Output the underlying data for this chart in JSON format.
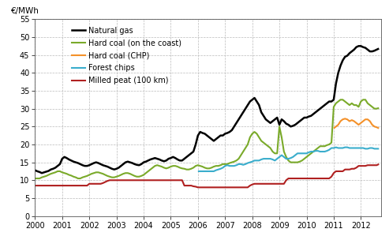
{
  "title": "",
  "ylabel": "€/MWh",
  "ylim": [
    0,
    55
  ],
  "yticks": [
    0,
    5,
    10,
    15,
    20,
    25,
    30,
    35,
    40,
    45,
    50,
    55
  ],
  "xlim": [
    2000,
    2012.75
  ],
  "xticks": [
    2000,
    2001,
    2002,
    2003,
    2004,
    2005,
    2006,
    2007,
    2008,
    2009,
    2010,
    2011,
    2012
  ],
  "background_color": "#ffffff",
  "grid_color": "#bbbbbb",
  "series": {
    "Natural gas": {
      "color": "#000000",
      "linewidth": 1.8,
      "x": [
        2000.0,
        2000.083,
        2000.167,
        2000.25,
        2000.333,
        2000.417,
        2000.5,
        2000.583,
        2000.667,
        2000.75,
        2000.833,
        2000.917,
        2001.0,
        2001.083,
        2001.167,
        2001.25,
        2001.333,
        2001.417,
        2001.5,
        2001.583,
        2001.667,
        2001.75,
        2001.833,
        2001.917,
        2002.0,
        2002.083,
        2002.167,
        2002.25,
        2002.333,
        2002.417,
        2002.5,
        2002.583,
        2002.667,
        2002.75,
        2002.833,
        2002.917,
        2003.0,
        2003.083,
        2003.167,
        2003.25,
        2003.333,
        2003.417,
        2003.5,
        2003.583,
        2003.667,
        2003.75,
        2003.833,
        2003.917,
        2004.0,
        2004.083,
        2004.167,
        2004.25,
        2004.333,
        2004.417,
        2004.5,
        2004.583,
        2004.667,
        2004.75,
        2004.833,
        2004.917,
        2005.0,
        2005.083,
        2005.167,
        2005.25,
        2005.333,
        2005.417,
        2005.5,
        2005.583,
        2005.667,
        2005.75,
        2005.833,
        2005.917,
        2006.0,
        2006.083,
        2006.167,
        2006.25,
        2006.333,
        2006.417,
        2006.5,
        2006.583,
        2006.667,
        2006.75,
        2006.833,
        2006.917,
        2007.0,
        2007.083,
        2007.167,
        2007.25,
        2007.333,
        2007.417,
        2007.5,
        2007.583,
        2007.667,
        2007.75,
        2007.833,
        2007.917,
        2008.0,
        2008.083,
        2008.167,
        2008.25,
        2008.333,
        2008.417,
        2008.5,
        2008.583,
        2008.667,
        2008.75,
        2008.833,
        2008.917,
        2009.0,
        2009.083,
        2009.167,
        2009.25,
        2009.333,
        2009.417,
        2009.5,
        2009.583,
        2009.667,
        2009.75,
        2009.833,
        2009.917,
        2010.0,
        2010.083,
        2010.167,
        2010.25,
        2010.333,
        2010.417,
        2010.5,
        2010.583,
        2010.667,
        2010.75,
        2010.833,
        2010.917,
        2011.0,
        2011.083,
        2011.167,
        2011.25,
        2011.333,
        2011.417,
        2011.5,
        2011.583,
        2011.667,
        2011.75,
        2011.833,
        2011.917,
        2012.0,
        2012.083,
        2012.167,
        2012.25,
        2012.333,
        2012.417,
        2012.5,
        2012.583,
        2012.667
      ],
      "y": [
        12.8,
        12.5,
        12.3,
        12.0,
        12.2,
        12.4,
        12.6,
        13.0,
        13.2,
        13.5,
        14.0,
        14.5,
        16.0,
        16.5,
        16.2,
        15.8,
        15.5,
        15.2,
        15.0,
        14.8,
        14.5,
        14.2,
        14.0,
        14.0,
        14.2,
        14.5,
        14.8,
        15.0,
        14.8,
        14.5,
        14.2,
        14.0,
        13.8,
        13.5,
        13.2,
        13.0,
        13.2,
        13.5,
        14.0,
        14.5,
        15.0,
        15.2,
        15.0,
        14.8,
        14.5,
        14.3,
        14.2,
        14.5,
        15.0,
        15.2,
        15.5,
        15.8,
        16.0,
        16.2,
        16.0,
        15.8,
        15.5,
        15.3,
        15.5,
        16.0,
        16.2,
        16.5,
        16.2,
        15.8,
        15.5,
        15.5,
        16.0,
        16.5,
        17.0,
        17.5,
        18.0,
        20.0,
        22.5,
        23.5,
        23.2,
        23.0,
        22.5,
        22.0,
        21.5,
        21.0,
        21.5,
        22.0,
        22.5,
        22.5,
        23.0,
        23.2,
        23.5,
        24.0,
        25.0,
        26.0,
        27.0,
        28.0,
        29.0,
        30.0,
        31.0,
        32.0,
        32.5,
        33.0,
        32.0,
        31.0,
        29.0,
        28.0,
        27.0,
        26.5,
        26.0,
        26.5,
        27.0,
        27.5,
        25.5,
        27.0,
        26.5,
        25.8,
        25.5,
        25.0,
        25.2,
        25.5,
        26.0,
        26.5,
        27.0,
        27.5,
        27.5,
        27.8,
        28.0,
        28.5,
        29.0,
        29.5,
        30.0,
        30.5,
        31.0,
        31.5,
        32.0,
        32.0,
        32.5,
        37.0,
        40.0,
        42.0,
        43.5,
        44.5,
        44.8,
        45.5,
        46.0,
        46.5,
        47.2,
        47.5,
        47.5,
        47.2,
        47.0,
        46.5,
        46.0,
        46.0,
        46.2,
        46.5,
        46.8
      ]
    },
    "Hard coal (on the coast)": {
      "color": "#7aaa2a",
      "linewidth": 1.5,
      "x": [
        2000.0,
        2000.083,
        2000.167,
        2000.25,
        2000.333,
        2000.417,
        2000.5,
        2000.583,
        2000.667,
        2000.75,
        2000.833,
        2000.917,
        2001.0,
        2001.083,
        2001.167,
        2001.25,
        2001.333,
        2001.417,
        2001.5,
        2001.583,
        2001.667,
        2001.75,
        2001.833,
        2001.917,
        2002.0,
        2002.083,
        2002.167,
        2002.25,
        2002.333,
        2002.417,
        2002.5,
        2002.583,
        2002.667,
        2002.75,
        2002.833,
        2002.917,
        2003.0,
        2003.083,
        2003.167,
        2003.25,
        2003.333,
        2003.417,
        2003.5,
        2003.583,
        2003.667,
        2003.75,
        2003.833,
        2003.917,
        2004.0,
        2004.083,
        2004.167,
        2004.25,
        2004.333,
        2004.417,
        2004.5,
        2004.583,
        2004.667,
        2004.75,
        2004.833,
        2004.917,
        2005.0,
        2005.083,
        2005.167,
        2005.25,
        2005.333,
        2005.417,
        2005.5,
        2005.583,
        2005.667,
        2005.75,
        2005.833,
        2005.917,
        2006.0,
        2006.083,
        2006.167,
        2006.25,
        2006.333,
        2006.417,
        2006.5,
        2006.583,
        2006.667,
        2006.75,
        2006.833,
        2006.917,
        2007.0,
        2007.083,
        2007.167,
        2007.25,
        2007.333,
        2007.417,
        2007.5,
        2007.583,
        2007.667,
        2007.75,
        2007.833,
        2007.917,
        2008.0,
        2008.083,
        2008.167,
        2008.25,
        2008.333,
        2008.417,
        2008.5,
        2008.583,
        2008.667,
        2008.75,
        2008.833,
        2008.917,
        2009.0,
        2009.083,
        2009.167,
        2009.25,
        2009.333,
        2009.417,
        2009.5,
        2009.583,
        2009.667,
        2009.75,
        2009.833,
        2009.917,
        2010.0,
        2010.083,
        2010.167,
        2010.25,
        2010.333,
        2010.417,
        2010.5,
        2010.583,
        2010.667,
        2010.75,
        2010.833,
        2010.917,
        2011.0,
        2011.083,
        2011.167,
        2011.25,
        2011.333,
        2011.417,
        2011.5,
        2011.583,
        2011.667,
        2011.75,
        2011.833,
        2011.917,
        2012.0,
        2012.083,
        2012.167,
        2012.25,
        2012.333,
        2012.417,
        2012.5,
        2012.583,
        2012.667
      ],
      "y": [
        10.5,
        10.5,
        10.5,
        10.8,
        11.0,
        11.2,
        11.5,
        11.8,
        12.0,
        12.2,
        12.5,
        12.5,
        12.2,
        12.0,
        11.8,
        11.5,
        11.3,
        11.0,
        10.8,
        10.5,
        10.5,
        10.8,
        11.0,
        11.2,
        11.5,
        11.8,
        12.0,
        12.2,
        12.2,
        12.0,
        11.8,
        11.5,
        11.2,
        11.0,
        10.8,
        10.8,
        11.0,
        11.2,
        11.5,
        11.8,
        12.0,
        12.0,
        11.8,
        11.5,
        11.2,
        11.0,
        11.0,
        11.2,
        11.5,
        12.0,
        12.5,
        13.0,
        13.5,
        14.0,
        14.2,
        14.0,
        13.8,
        13.5,
        13.3,
        13.5,
        13.8,
        14.0,
        14.0,
        13.8,
        13.5,
        13.3,
        13.2,
        13.0,
        13.0,
        13.2,
        13.5,
        14.0,
        14.2,
        14.0,
        13.8,
        13.5,
        13.3,
        13.3,
        13.5,
        13.8,
        14.0,
        14.0,
        14.2,
        14.5,
        14.5,
        14.5,
        14.8,
        15.0,
        15.2,
        15.5,
        16.0,
        17.0,
        18.0,
        19.0,
        20.0,
        22.0,
        23.0,
        23.5,
        23.0,
        22.0,
        21.0,
        20.5,
        20.0,
        19.5,
        19.0,
        18.0,
        17.5,
        17.5,
        25.0,
        22.0,
        18.0,
        16.5,
        15.5,
        15.0,
        15.0,
        15.0,
        15.0,
        15.2,
        15.5,
        16.0,
        16.5,
        17.0,
        17.5,
        18.0,
        18.5,
        19.0,
        19.5,
        19.5,
        19.5,
        19.8,
        20.0,
        20.5,
        30.5,
        31.5,
        32.0,
        32.5,
        32.5,
        32.0,
        31.5,
        31.0,
        31.5,
        31.0,
        31.0,
        30.5,
        32.0,
        32.5,
        32.5,
        31.5,
        31.0,
        30.5,
        30.0,
        30.0,
        30.2
      ]
    },
    "Hard coal (CHP)": {
      "color": "#f4912a",
      "linewidth": 1.5,
      "x": [
        2011.0,
        2011.083,
        2011.167,
        2011.25,
        2011.333,
        2011.417,
        2011.5,
        2011.583,
        2011.667,
        2011.75,
        2011.833,
        2011.917,
        2012.0,
        2012.083,
        2012.167,
        2012.25,
        2012.333,
        2012.417,
        2012.5,
        2012.583,
        2012.667
      ],
      "y": [
        24.5,
        25.0,
        25.5,
        26.5,
        27.0,
        27.2,
        27.0,
        26.5,
        26.8,
        26.5,
        26.0,
        25.5,
        26.0,
        26.5,
        27.0,
        27.0,
        26.5,
        25.5,
        25.0,
        24.8,
        24.5
      ]
    },
    "Forest chips": {
      "color": "#3aadcc",
      "linewidth": 1.5,
      "x": [
        2006.0,
        2006.083,
        2006.167,
        2006.25,
        2006.333,
        2006.417,
        2006.5,
        2006.583,
        2006.667,
        2006.75,
        2006.833,
        2006.917,
        2007.0,
        2007.083,
        2007.167,
        2007.25,
        2007.333,
        2007.417,
        2007.5,
        2007.583,
        2007.667,
        2007.75,
        2007.833,
        2007.917,
        2008.0,
        2008.083,
        2008.167,
        2008.25,
        2008.333,
        2008.417,
        2008.5,
        2008.583,
        2008.667,
        2008.75,
        2008.833,
        2008.917,
        2009.0,
        2009.083,
        2009.167,
        2009.25,
        2009.333,
        2009.417,
        2009.5,
        2009.583,
        2009.667,
        2009.75,
        2009.833,
        2009.917,
        2010.0,
        2010.083,
        2010.167,
        2010.25,
        2010.333,
        2010.417,
        2010.5,
        2010.583,
        2010.667,
        2010.75,
        2010.833,
        2010.917,
        2011.0,
        2011.083,
        2011.167,
        2011.25,
        2011.333,
        2011.417,
        2011.5,
        2011.583,
        2011.667,
        2011.75,
        2011.833,
        2011.917,
        2012.0,
        2012.083,
        2012.167,
        2012.25,
        2012.333,
        2012.417,
        2012.5,
        2012.583,
        2012.667
      ],
      "y": [
        12.5,
        12.5,
        12.5,
        12.5,
        12.5,
        12.5,
        12.5,
        12.5,
        12.8,
        13.0,
        13.2,
        13.5,
        14.0,
        14.2,
        14.0,
        14.0,
        14.0,
        14.2,
        14.5,
        14.5,
        14.3,
        14.5,
        14.8,
        15.0,
        15.2,
        15.5,
        15.5,
        15.5,
        15.8,
        16.0,
        16.0,
        16.0,
        16.0,
        15.8,
        15.5,
        16.0,
        16.5,
        17.0,
        16.5,
        16.0,
        16.0,
        16.2,
        16.5,
        17.0,
        17.5,
        17.5,
        17.5,
        17.5,
        17.5,
        17.8,
        18.0,
        18.0,
        18.2,
        18.2,
        18.0,
        18.0,
        18.0,
        18.2,
        18.5,
        19.0,
        19.0,
        19.2,
        19.0,
        19.0,
        19.0,
        19.2,
        19.2,
        19.0,
        19.0,
        19.0,
        19.0,
        19.0,
        19.0,
        19.0,
        18.8,
        18.8,
        19.0,
        19.0,
        18.8,
        18.8,
        18.8
      ]
    },
    "Milled peat (100 km)": {
      "color": "#b02020",
      "linewidth": 1.5,
      "x": [
        2000.0,
        2000.083,
        2000.167,
        2000.25,
        2000.333,
        2000.417,
        2000.5,
        2000.583,
        2000.667,
        2000.75,
        2000.833,
        2000.917,
        2001.0,
        2001.083,
        2001.167,
        2001.25,
        2001.333,
        2001.417,
        2001.5,
        2001.583,
        2001.667,
        2001.75,
        2001.833,
        2001.917,
        2002.0,
        2002.083,
        2002.167,
        2002.25,
        2002.333,
        2002.417,
        2002.5,
        2002.583,
        2002.667,
        2002.75,
        2002.833,
        2002.917,
        2003.0,
        2003.083,
        2003.167,
        2003.25,
        2003.333,
        2003.417,
        2003.5,
        2003.583,
        2003.667,
        2003.75,
        2003.833,
        2003.917,
        2004.0,
        2004.083,
        2004.167,
        2004.25,
        2004.333,
        2004.417,
        2004.5,
        2004.583,
        2004.667,
        2004.75,
        2004.833,
        2004.917,
        2005.0,
        2005.083,
        2005.167,
        2005.25,
        2005.333,
        2005.417,
        2005.5,
        2005.583,
        2005.667,
        2005.75,
        2005.833,
        2005.917,
        2006.0,
        2006.083,
        2006.167,
        2006.25,
        2006.333,
        2006.417,
        2006.5,
        2006.583,
        2006.667,
        2006.75,
        2006.833,
        2006.917,
        2007.0,
        2007.083,
        2007.167,
        2007.25,
        2007.333,
        2007.417,
        2007.5,
        2007.583,
        2007.667,
        2007.75,
        2007.833,
        2007.917,
        2008.0,
        2008.083,
        2008.167,
        2008.25,
        2008.333,
        2008.417,
        2008.5,
        2008.583,
        2008.667,
        2008.75,
        2008.833,
        2008.917,
        2009.0,
        2009.083,
        2009.167,
        2009.25,
        2009.333,
        2009.417,
        2009.5,
        2009.583,
        2009.667,
        2009.75,
        2009.833,
        2009.917,
        2010.0,
        2010.083,
        2010.167,
        2010.25,
        2010.333,
        2010.417,
        2010.5,
        2010.583,
        2010.667,
        2010.75,
        2010.833,
        2010.917,
        2011.0,
        2011.083,
        2011.167,
        2011.25,
        2011.333,
        2011.417,
        2011.5,
        2011.583,
        2011.667,
        2011.75,
        2011.833,
        2011.917,
        2012.0,
        2012.083,
        2012.167,
        2012.25,
        2012.333,
        2012.417,
        2012.5,
        2012.583,
        2012.667
      ],
      "y": [
        8.5,
        8.5,
        8.5,
        8.5,
        8.5,
        8.5,
        8.5,
        8.5,
        8.5,
        8.5,
        8.5,
        8.5,
        8.5,
        8.5,
        8.5,
        8.5,
        8.5,
        8.5,
        8.5,
        8.5,
        8.5,
        8.5,
        8.5,
        8.5,
        9.0,
        9.0,
        9.0,
        9.0,
        9.0,
        9.0,
        9.2,
        9.5,
        9.8,
        10.0,
        10.0,
        10.0,
        10.0,
        10.0,
        10.0,
        10.0,
        10.0,
        10.0,
        10.0,
        10.0,
        10.0,
        10.0,
        10.0,
        10.0,
        10.0,
        10.0,
        10.0,
        10.0,
        10.0,
        10.0,
        10.0,
        10.0,
        10.0,
        10.0,
        10.0,
        10.0,
        10.0,
        10.0,
        10.0,
        10.0,
        10.0,
        10.0,
        8.5,
        8.5,
        8.5,
        8.5,
        8.3,
        8.2,
        8.0,
        8.0,
        8.0,
        8.0,
        8.0,
        8.0,
        8.0,
        8.0,
        8.0,
        8.0,
        8.0,
        8.0,
        8.0,
        8.0,
        8.0,
        8.0,
        8.0,
        8.0,
        8.0,
        8.0,
        8.0,
        8.0,
        8.0,
        8.5,
        8.8,
        9.0,
        9.0,
        9.0,
        9.0,
        9.0,
        9.0,
        9.0,
        9.0,
        9.0,
        9.0,
        9.0,
        9.0,
        9.0,
        9.0,
        10.0,
        10.5,
        10.5,
        10.5,
        10.5,
        10.5,
        10.5,
        10.5,
        10.5,
        10.5,
        10.5,
        10.5,
        10.5,
        10.5,
        10.5,
        10.5,
        10.5,
        10.5,
        10.5,
        10.5,
        11.0,
        12.0,
        12.5,
        12.5,
        12.5,
        12.5,
        13.0,
        13.0,
        13.0,
        13.2,
        13.2,
        13.5,
        14.0,
        14.0,
        14.0,
        14.0,
        14.2,
        14.2,
        14.2,
        14.2,
        14.2,
        14.5
      ]
    }
  },
  "legend": {
    "entries": [
      "Natural gas",
      "Hard coal (on the coast)",
      "Hard coal (CHP)",
      "Forest chips",
      "Milled peat (100 km)"
    ],
    "colors": [
      "#000000",
      "#7aaa2a",
      "#f4912a",
      "#3aadcc",
      "#b02020"
    ],
    "fontsize": 7.0
  }
}
